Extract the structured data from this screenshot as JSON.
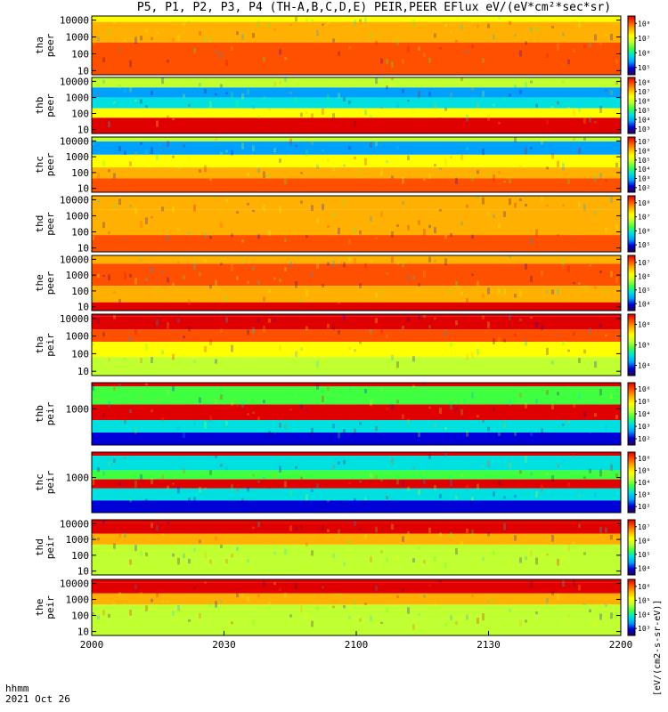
{
  "title": "P5, P1, P2, P3, P4 (TH-A,B,C,D,E) PEIR,PEER EFlux eV/(eV*cm²*sec*sr)",
  "colorbar_unit": "[eV/(cm2-s-sr-eV)]",
  "time_label": "hhmm",
  "date_label": "2021 Oct 26",
  "x_ticks": [
    "2000",
    "2030",
    "2100",
    "2130",
    "2200"
  ],
  "chart_data": [
    {
      "type": "heatmap",
      "probe": "tha",
      "species": "peer",
      "ylabel_line1": "tha",
      "ylabel_line2": "peer",
      "yscale": "log",
      "y_ticks": [
        "10",
        "100",
        "1000",
        "10000"
      ],
      "colorbar_ticks": [
        "10⁵",
        "10⁶",
        "10⁷",
        "10⁸"
      ],
      "dominant": "red/orange low energy, green band near 2045"
    },
    {
      "type": "heatmap",
      "probe": "thb",
      "species": "peer",
      "ylabel_line1": "thb",
      "ylabel_line2": "peer",
      "yscale": "log",
      "y_ticks": [
        "10",
        "100",
        "1000",
        "10000"
      ],
      "colorbar_ticks": [
        "10³",
        "10⁴",
        "10⁵",
        "10⁶",
        "10⁷",
        "10⁸"
      ],
      "dominant": "red below ~100 eV, noisy blue above 1000 eV"
    },
    {
      "type": "heatmap",
      "probe": "thc",
      "species": "peer",
      "ylabel_line1": "thc",
      "ylabel_line2": "peer",
      "yscale": "log",
      "y_ticks": [
        "10",
        "100",
        "1000",
        "10000"
      ],
      "colorbar_ticks": [
        "10²",
        "10³",
        "10⁴",
        "10⁵",
        "10⁶",
        "10⁷"
      ],
      "dominant": "red/orange at low energy, noisy blue above 1000 eV"
    },
    {
      "type": "heatmap",
      "probe": "thd",
      "species": "peer",
      "ylabel_line1": "thd",
      "ylabel_line2": "peer",
      "yscale": "log",
      "y_ticks": [
        "10",
        "100",
        "1000",
        "10000"
      ],
      "colorbar_ticks": [
        "10⁵",
        "10⁶",
        "10⁷",
        "10⁸"
      ],
      "dominant": "orange/red broad"
    },
    {
      "type": "heatmap",
      "probe": "the",
      "species": "peer",
      "ylabel_line1": "the",
      "ylabel_line2": "peer",
      "yscale": "log",
      "y_ticks": [
        "10",
        "100",
        "1000",
        "10000"
      ],
      "colorbar_ticks": [
        "10⁴",
        "10⁵",
        "10⁶",
        "10⁷"
      ],
      "dominant": "red/orange, green dip near 2055"
    },
    {
      "type": "heatmap",
      "probe": "tha",
      "species": "peir",
      "ylabel_line1": "tha",
      "ylabel_line2": "peir",
      "yscale": "log",
      "y_ticks": [
        "10",
        "100",
        "1000",
        "10000"
      ],
      "colorbar_ticks": [
        "10⁴",
        "10⁵",
        "10⁶"
      ],
      "dominant": "red at high energy, green at low energy"
    },
    {
      "type": "heatmap",
      "probe": "thb",
      "species": "peir",
      "ylabel_line1": "thb",
      "ylabel_line2": "peir",
      "yscale": "log",
      "y_ticks": [
        "1000"
      ],
      "colorbar_ticks": [
        "10²",
        "10³",
        "10⁴",
        "10⁵",
        "10⁶"
      ],
      "dominant": "red band mid energy, noisy blue/green edges"
    },
    {
      "type": "heatmap",
      "probe": "thc",
      "species": "peir",
      "ylabel_line1": "thc",
      "ylabel_line2": "peir",
      "yscale": "log",
      "y_ticks": [
        "1000"
      ],
      "colorbar_ticks": [
        "10²",
        "10³",
        "10⁴",
        "10⁵",
        "10⁶"
      ],
      "dominant": "red band mid energy, noisy blue/green edges"
    },
    {
      "type": "heatmap",
      "probe": "thd",
      "species": "peir",
      "ylabel_line1": "thd",
      "ylabel_line2": "peir",
      "yscale": "log",
      "y_ticks": [
        "10",
        "100",
        "1000",
        "10000"
      ],
      "colorbar_ticks": [
        "10⁴",
        "10⁵",
        "10⁶",
        "10⁷"
      ],
      "dominant": "red at high energy, green at low energy"
    },
    {
      "type": "heatmap",
      "probe": "the",
      "species": "peir",
      "ylabel_line1": "the",
      "ylabel_line2": "peir",
      "yscale": "log",
      "y_ticks": [
        "10",
        "100",
        "1000",
        "10000"
      ],
      "colorbar_ticks": [
        "10³",
        "10⁴",
        "10⁵",
        "10⁶"
      ],
      "dominant": "red at high energy, green at low energy"
    }
  ]
}
